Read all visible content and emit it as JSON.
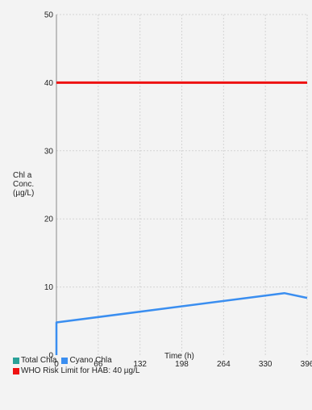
{
  "chart_data": {
    "type": "line",
    "ylabel": [
      "Chl a",
      "Conc.",
      "(µg/L)"
    ],
    "xlabel": "Time (h)",
    "xlim": [
      0,
      396
    ],
    "ylim": [
      0,
      50
    ],
    "x_ticks": [
      "0",
      "66",
      "132",
      "198",
      "264",
      "330",
      "396"
    ],
    "y_ticks": [
      "0",
      "10",
      "20",
      "30",
      "40",
      "50"
    ],
    "grid": true,
    "legend_placement": "bottom-left",
    "series": [
      {
        "name": "Total Chla",
        "color": "#2aa198",
        "x": [],
        "y": []
      },
      {
        "name": "Cyano Chla",
        "color": "#3a8ef0",
        "x": [
          0,
          0,
          360,
          396
        ],
        "y": [
          0,
          4.8,
          9.1,
          8.4
        ]
      },
      {
        "name": "WHO Risk Limit for HAB: 40 µg/L",
        "color": "#ee1111",
        "x": [
          0,
          396
        ],
        "y": [
          40,
          40
        ]
      }
    ]
  }
}
